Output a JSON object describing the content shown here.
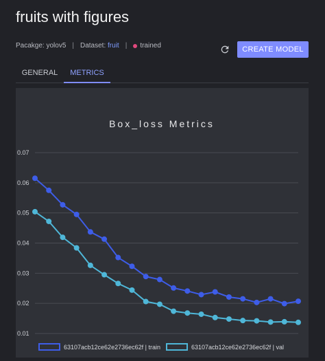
{
  "page": {
    "title": "fruits with figures",
    "package_label": "Pacakge: yolov5",
    "separator": "|",
    "dataset_prefix": "Dataset:",
    "dataset_name": "fruit",
    "status": "trained",
    "create_button": "CREATE MODEL",
    "refresh_icon": "refresh-icon"
  },
  "tabs": [
    {
      "label": "GENERAL",
      "active": false
    },
    {
      "label": "METRICS",
      "active": true
    }
  ],
  "colors": {
    "accent": "#7f8cff",
    "status_dot": "#e0487d",
    "train": "#3e5de8",
    "val": "#4fb7d8"
  },
  "chart_data": {
    "type": "line",
    "title": "Box_loss Metrics",
    "ylim": [
      0.01,
      0.07
    ],
    "yticks": [
      "0.07",
      "0.06",
      "0.05",
      "0.04",
      "0.03",
      "0.02",
      "0.01"
    ],
    "grid": true,
    "legend_position": "bottom",
    "series": [
      {
        "name": "63107acb12ce62e2736ec62f | train",
        "color": "#3e5de8",
        "values": [
          0.0615,
          0.0575,
          0.0527,
          0.0495,
          0.0437,
          0.0413,
          0.0352,
          0.0323,
          0.0289,
          0.0279,
          0.0251,
          0.0241,
          0.0229,
          0.0238,
          0.0221,
          0.0215,
          0.0203,
          0.0215,
          0.0199,
          0.0207
        ]
      },
      {
        "name": "63107acb12ce62e2736ec62f | val",
        "color": "#4fb7d8",
        "values": [
          0.0504,
          0.0472,
          0.0419,
          0.0384,
          0.0326,
          0.0295,
          0.0266,
          0.0244,
          0.0206,
          0.0197,
          0.0174,
          0.0168,
          0.0164,
          0.0153,
          0.0148,
          0.0143,
          0.0142,
          0.0138,
          0.0139,
          0.0137
        ]
      }
    ]
  }
}
